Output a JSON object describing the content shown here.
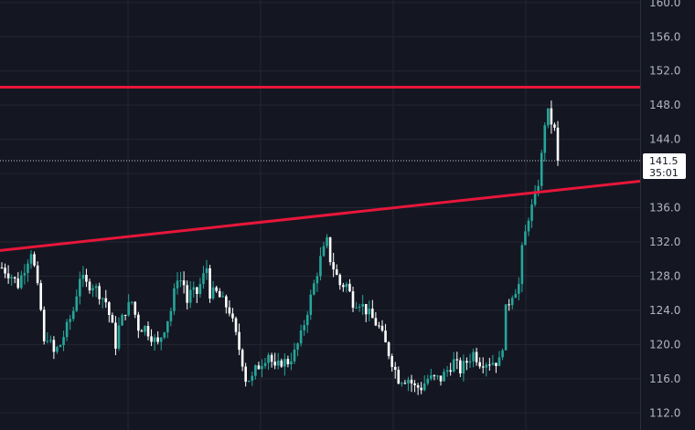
{
  "chart_data": {
    "type": "candlestick",
    "y_axis": {
      "ticks": [
        "112.0",
        "116.0",
        "120.0",
        "124.0",
        "128.0",
        "132.0",
        "136.0",
        "140.0",
        "144.0",
        "148.0",
        "152.0",
        "156.0",
        "160.0"
      ],
      "range": [
        110.0,
        160.3
      ]
    },
    "last_price": {
      "value": "141.5",
      "countdown": "35:01"
    },
    "colors": {
      "background": "#141722",
      "grid": "#232632",
      "up": "#26a69a",
      "down": "#ffffff",
      "trendline": "#e8163a",
      "axis_text": "#b2b5be",
      "badge_bg": "#ffffff",
      "badge_text": "#131722"
    },
    "trendlines": [
      {
        "name": "horizontal-resistance",
        "from": {
          "x": 0,
          "y": 150.1
        },
        "to": {
          "x": 100,
          "y": 150.1
        }
      },
      {
        "name": "rising-trendline",
        "from": {
          "x": 0,
          "y": 131.0
        },
        "to": {
          "x": 100,
          "y": 139.8
        }
      }
    ],
    "anchors": [
      [
        0,
        129
      ],
      [
        3,
        128
      ],
      [
        5,
        127
      ],
      [
        8,
        130
      ],
      [
        9,
        131
      ],
      [
        10,
        129
      ],
      [
        12,
        124
      ],
      [
        13,
        120
      ],
      [
        14,
        121
      ],
      [
        16,
        119
      ],
      [
        18,
        120
      ],
      [
        20,
        122
      ],
      [
        22,
        124
      ],
      [
        24,
        128
      ],
      [
        26,
        127
      ],
      [
        28,
        127
      ],
      [
        30,
        126
      ],
      [
        32,
        125
      ],
      [
        34,
        122
      ],
      [
        35,
        120
      ],
      [
        36,
        122
      ],
      [
        38,
        124
      ],
      [
        40,
        125
      ],
      [
        42,
        122
      ],
      [
        44,
        122
      ],
      [
        46,
        121
      ],
      [
        48,
        120
      ],
      [
        50,
        122
      ],
      [
        52,
        124
      ],
      [
        54,
        128
      ],
      [
        56,
        127
      ],
      [
        57,
        125
      ],
      [
        58,
        126
      ],
      [
        60,
        126
      ],
      [
        62,
        128
      ],
      [
        63,
        129
      ],
      [
        64,
        126
      ],
      [
        66,
        126
      ],
      [
        68,
        125
      ],
      [
        70,
        124
      ],
      [
        72,
        121
      ],
      [
        74,
        118
      ],
      [
        75,
        116
      ],
      [
        77,
        116
      ],
      [
        78,
        117
      ],
      [
        80,
        118
      ],
      [
        82,
        119
      ],
      [
        84,
        117
      ],
      [
        86,
        118
      ],
      [
        88,
        118
      ],
      [
        90,
        119
      ],
      [
        92,
        121
      ],
      [
        94,
        124
      ],
      [
        96,
        127
      ],
      [
        98,
        130
      ],
      [
        100,
        132
      ],
      [
        101,
        130
      ],
      [
        102,
        129
      ],
      [
        104,
        127
      ],
      [
        106,
        127
      ],
      [
        108,
        125
      ],
      [
        110,
        125
      ],
      [
        112,
        124
      ],
      [
        114,
        123
      ],
      [
        116,
        122
      ],
      [
        118,
        120
      ],
      [
        120,
        118
      ],
      [
        122,
        116
      ],
      [
        123,
        116
      ],
      [
        125,
        116
      ],
      [
        127,
        115
      ],
      [
        129,
        115
      ],
      [
        131,
        116
      ],
      [
        133,
        116
      ],
      [
        135,
        116
      ],
      [
        137,
        117
      ],
      [
        139,
        118
      ],
      [
        141,
        117
      ],
      [
        143,
        118
      ],
      [
        145,
        119
      ],
      [
        147,
        118
      ],
      [
        149,
        118
      ],
      [
        151,
        118
      ],
      [
        153,
        118
      ],
      [
        154,
        120
      ],
      [
        155,
        124
      ],
      [
        157,
        126
      ],
      [
        159,
        127
      ],
      [
        160,
        131
      ],
      [
        161,
        133
      ],
      [
        162,
        135
      ],
      [
        163,
        136
      ],
      [
        164,
        137
      ],
      [
        165,
        139
      ],
      [
        166,
        142
      ],
      [
        167,
        146
      ],
      [
        168,
        147
      ],
      [
        169,
        146
      ],
      [
        170,
        145
      ],
      [
        171,
        141.5
      ]
    ]
  }
}
